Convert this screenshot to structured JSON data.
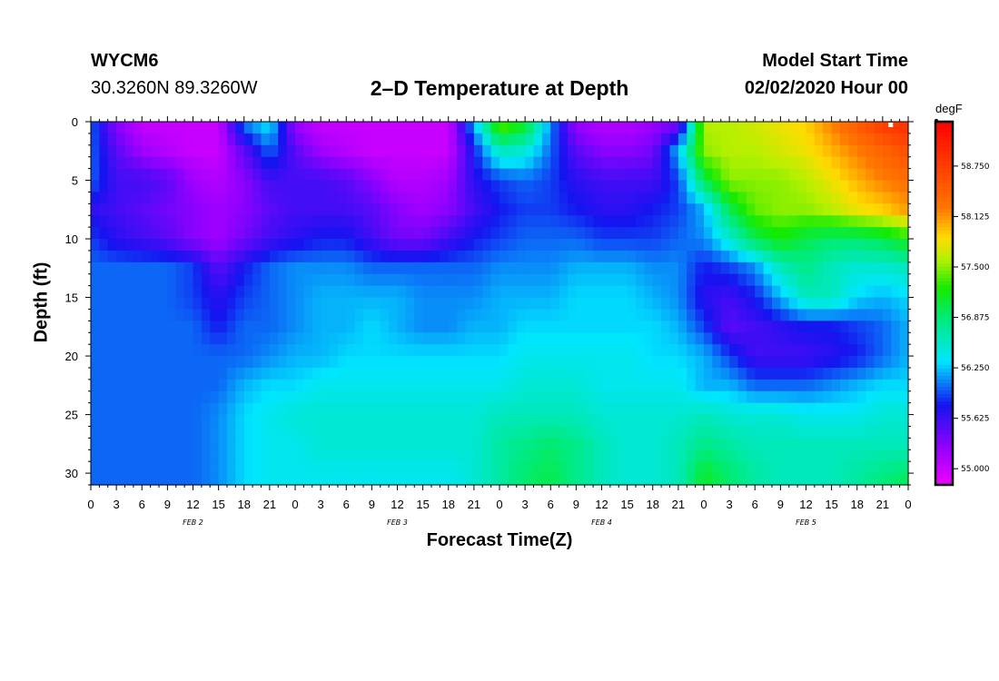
{
  "header": {
    "station": "WYCM6",
    "coords": "30.3260N 89.3260W",
    "title": "2–D Temperature at Depth",
    "model_start_label": "Model Start Time",
    "model_start_value": "02/02/2020 Hour 00"
  },
  "chart_data": {
    "type": "heatmap",
    "title": "2–D Temperature at Depth",
    "xlabel": "Forecast Time(Z)",
    "ylabel": "Depth (ft)",
    "x_tick_labels": [
      "0",
      "3",
      "6",
      "9",
      "12",
      "15",
      "18",
      "21",
      "0",
      "3",
      "6",
      "9",
      "12",
      "15",
      "18",
      "21",
      "0",
      "3",
      "6",
      "9",
      "12",
      "15",
      "18",
      "21",
      "0",
      "3",
      "6",
      "9",
      "12",
      "15",
      "18",
      "21",
      "0"
    ],
    "day_labels": [
      "FEB 2",
      "FEB 3",
      "FEB 4",
      "FEB 5"
    ],
    "y_tick_labels": [
      "0",
      "5",
      "10",
      "15",
      "20",
      "25",
      "30"
    ],
    "xlim_hours": [
      0,
      96
    ],
    "ylim_ft": [
      0,
      31
    ],
    "colorbar": {
      "unit": "degF",
      "range": [
        54.8,
        59.3
      ],
      "tick_labels": [
        "58.750",
        "58.125",
        "57.500",
        "56.875",
        "56.250",
        "55.625",
        "55.000"
      ],
      "tick_values": [
        58.75,
        58.125,
        57.5,
        56.875,
        56.25,
        55.625,
        55.0
      ]
    },
    "time_hours": [
      0,
      3,
      6,
      9,
      12,
      15,
      18,
      21,
      24,
      27,
      30,
      33,
      36,
      39,
      42,
      45,
      48,
      51,
      54,
      57,
      60,
      63,
      66,
      69,
      72,
      75,
      78,
      81,
      84,
      87,
      90,
      93,
      96
    ],
    "depth_ft": [
      0,
      2.5,
      5,
      7.5,
      10,
      12.5,
      15,
      17.5,
      20,
      22.5,
      25,
      27.5,
      30,
      31
    ],
    "temperature_degF": [
      [
        56.0,
        55.3,
        55.0,
        55.0,
        55.0,
        55.0,
        56.1,
        56.4,
        55.2,
        55.0,
        55.0,
        55.0,
        55.0,
        55.0,
        55.0,
        56.2,
        57.5,
        57.2,
        56.1,
        55.2,
        55.1,
        55.1,
        55.2,
        55.3,
        57.6,
        57.6,
        57.7,
        57.8,
        57.9,
        58.2,
        58.5,
        58.8,
        58.9
      ],
      [
        56.0,
        55.5,
        55.2,
        55.1,
        55.0,
        55.0,
        55.5,
        56.0,
        55.5,
        55.2,
        55.1,
        55.0,
        55.0,
        55.0,
        55.0,
        55.8,
        56.6,
        56.5,
        56.0,
        55.5,
        55.3,
        55.3,
        55.4,
        56.2,
        57.5,
        57.6,
        57.6,
        57.7,
        57.8,
        58.0,
        58.2,
        58.4,
        58.6
      ],
      [
        56.0,
        55.6,
        55.6,
        55.5,
        55.2,
        55.1,
        55.3,
        55.6,
        55.6,
        55.6,
        55.5,
        55.3,
        55.1,
        55.1,
        55.2,
        55.7,
        55.9,
        56.0,
        55.9,
        55.7,
        55.6,
        55.6,
        55.6,
        55.9,
        57.0,
        57.5,
        57.5,
        57.5,
        57.6,
        57.8,
        58.0,
        58.2,
        58.3
      ],
      [
        55.7,
        55.6,
        55.5,
        55.4,
        55.3,
        55.2,
        55.3,
        55.5,
        55.6,
        55.6,
        55.6,
        55.5,
        55.3,
        55.2,
        55.3,
        55.6,
        55.8,
        55.9,
        55.9,
        55.8,
        55.7,
        55.7,
        55.8,
        55.9,
        56.2,
        57.0,
        57.4,
        57.5,
        57.5,
        57.6,
        57.8,
        57.9,
        58.1
      ],
      [
        55.9,
        55.7,
        55.6,
        55.5,
        55.3,
        55.2,
        55.4,
        55.6,
        55.7,
        55.8,
        55.8,
        55.6,
        55.4,
        55.4,
        55.6,
        55.8,
        55.9,
        56.0,
        56.0,
        56.0,
        55.9,
        55.9,
        55.9,
        56.0,
        56.1,
        56.5,
        57.0,
        57.2,
        57.0,
        56.9,
        56.9,
        57.0,
        57.2
      ],
      [
        56.0,
        56.0,
        56.0,
        56.0,
        55.9,
        55.5,
        55.8,
        56.0,
        56.1,
        56.1,
        56.1,
        56.0,
        56.0,
        56.0,
        56.0,
        56.0,
        56.1,
        56.1,
        56.1,
        56.2,
        56.2,
        56.2,
        56.1,
        56.1,
        55.8,
        55.9,
        56.1,
        56.6,
        56.8,
        56.6,
        56.5,
        56.5,
        56.6
      ],
      [
        56.0,
        56.0,
        56.0,
        56.0,
        55.9,
        55.7,
        55.9,
        56.0,
        56.1,
        56.2,
        56.2,
        56.2,
        56.2,
        56.1,
        56.1,
        56.1,
        56.2,
        56.2,
        56.2,
        56.3,
        56.3,
        56.3,
        56.2,
        56.1,
        55.7,
        55.6,
        55.8,
        56.2,
        56.6,
        56.6,
        56.3,
        56.2,
        56.3
      ],
      [
        56.0,
        56.0,
        56.0,
        56.0,
        56.0,
        55.8,
        56.0,
        56.0,
        56.1,
        56.2,
        56.2,
        56.3,
        56.2,
        56.1,
        56.1,
        56.2,
        56.2,
        56.3,
        56.3,
        56.3,
        56.3,
        56.3,
        56.3,
        56.2,
        55.9,
        55.5,
        55.6,
        55.7,
        55.8,
        55.8,
        55.9,
        56.0,
        56.2
      ],
      [
        56.0,
        56.0,
        56.0,
        56.0,
        56.0,
        56.0,
        56.0,
        56.1,
        56.2,
        56.2,
        56.3,
        56.3,
        56.3,
        56.3,
        56.3,
        56.3,
        56.3,
        56.4,
        56.4,
        56.4,
        56.4,
        56.4,
        56.3,
        56.3,
        56.2,
        55.9,
        55.6,
        55.6,
        55.6,
        55.7,
        55.8,
        56.0,
        56.2
      ],
      [
        56.0,
        56.0,
        56.0,
        56.0,
        56.0,
        56.0,
        56.2,
        56.3,
        56.3,
        56.4,
        56.4,
        56.4,
        56.4,
        56.4,
        56.4,
        56.4,
        56.4,
        56.5,
        56.5,
        56.5,
        56.4,
        56.4,
        56.4,
        56.4,
        56.2,
        56.2,
        56.0,
        56.0,
        56.0,
        56.1,
        56.2,
        56.3,
        56.3
      ],
      [
        56.0,
        56.0,
        56.0,
        56.0,
        56.0,
        56.1,
        56.3,
        56.4,
        56.5,
        56.5,
        56.5,
        56.5,
        56.5,
        56.5,
        56.5,
        56.5,
        56.6,
        56.6,
        56.6,
        56.6,
        56.5,
        56.5,
        56.5,
        56.5,
        56.6,
        56.5,
        56.5,
        56.5,
        56.4,
        56.4,
        56.4,
        56.5,
        56.5
      ],
      [
        56.0,
        56.0,
        56.0,
        56.0,
        56.0,
        56.1,
        56.3,
        56.4,
        56.4,
        56.5,
        56.5,
        56.5,
        56.5,
        56.5,
        56.5,
        56.5,
        56.7,
        56.8,
        56.9,
        56.8,
        56.6,
        56.5,
        56.5,
        56.6,
        56.8,
        56.7,
        56.6,
        56.6,
        56.6,
        56.6,
        56.6,
        56.6,
        56.6
      ],
      [
        56.0,
        56.0,
        56.0,
        56.0,
        56.0,
        56.1,
        56.3,
        56.4,
        56.4,
        56.4,
        56.4,
        56.4,
        56.4,
        56.4,
        56.4,
        56.5,
        56.7,
        56.9,
        57.0,
        56.8,
        56.6,
        56.5,
        56.5,
        56.6,
        57.1,
        56.9,
        56.7,
        56.6,
        56.6,
        56.6,
        56.7,
        56.8,
        56.9
      ],
      [
        56.0,
        56.0,
        56.0,
        56.0,
        56.0,
        56.1,
        56.3,
        56.4,
        56.4,
        56.4,
        56.4,
        56.4,
        56.4,
        56.4,
        56.4,
        56.5,
        56.7,
        56.9,
        57.0,
        56.8,
        56.6,
        56.5,
        56.5,
        56.6,
        57.1,
        56.9,
        56.7,
        56.6,
        56.6,
        56.6,
        56.7,
        56.9,
        57.0
      ]
    ]
  }
}
